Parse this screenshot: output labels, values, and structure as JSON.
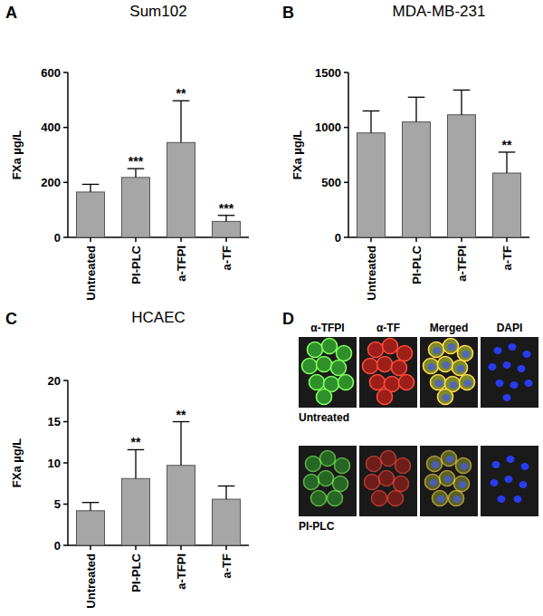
{
  "chart_data": [
    {
      "type": "bar",
      "panel": "A",
      "title": "Sum102",
      "y_label": "FXa µg/L",
      "categories": [
        "Untreated",
        "PI-PLC",
        "a-TFPI",
        "a-TF"
      ],
      "values": [
        165,
        218,
        345,
        58
      ],
      "error": [
        28,
        32,
        152,
        22
      ],
      "significance": [
        null,
        "***",
        "**",
        "***"
      ],
      "color": "#a6a6a6",
      "ylim": [
        0,
        600
      ],
      "yticks": [
        0,
        200,
        400,
        600
      ]
    },
    {
      "type": "bar",
      "panel": "B",
      "title": "MDA-MB-231",
      "y_label": "FXa µg/L",
      "categories": [
        "Untreated",
        "PI-PLC",
        "a-TFPI",
        "a-TF"
      ],
      "values": [
        950,
        1050,
        1115,
        585
      ],
      "error": [
        200,
        225,
        225,
        190
      ],
      "significance": [
        null,
        null,
        null,
        "**"
      ],
      "color": "#a6a6a6",
      "ylim": [
        0,
        1500
      ],
      "yticks": [
        0,
        500,
        1000,
        1500
      ]
    },
    {
      "type": "bar",
      "panel": "C",
      "title": "HCAEC",
      "y_label": "FXa µg/L",
      "categories": [
        "Untreated",
        "PI-PLC",
        "a-TFPI",
        "a-TF"
      ],
      "values": [
        4.2,
        8.1,
        9.7,
        5.6
      ],
      "error": [
        1.0,
        3.5,
        5.3,
        1.6
      ],
      "significance": [
        null,
        "**",
        "**",
        null
      ],
      "color": "#a6a6a6",
      "ylim": [
        0,
        20
      ],
      "yticks": [
        0,
        5,
        10,
        15,
        20
      ]
    }
  ],
  "figure_d": {
    "panel": "D",
    "columns": [
      "α-TFPI",
      "α-TF",
      "Merged",
      "DAPI"
    ],
    "rows": [
      "Untreated",
      "PI-PLC"
    ]
  }
}
